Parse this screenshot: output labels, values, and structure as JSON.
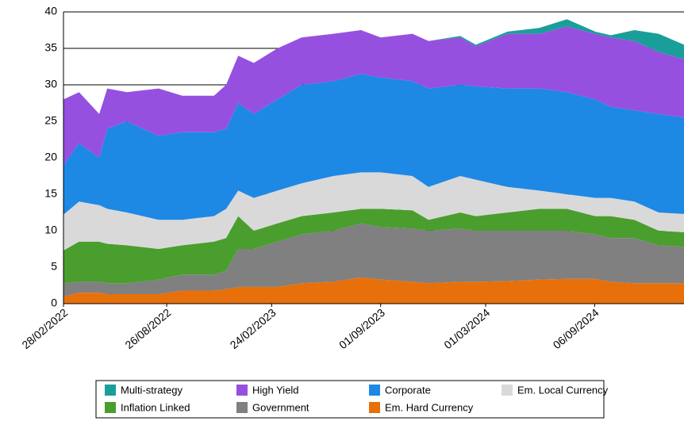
{
  "chart_data": {
    "type": "stacked-area",
    "x": [
      "28/02/2022",
      "27/03/2022",
      "01/05/2022",
      "15/05/2022",
      "18/06/2022",
      "12/08/2022",
      "22/09/2022",
      "16/11/2022",
      "07/12/2022",
      "28/12/2022",
      "24/01/2023",
      "06/03/2023",
      "17/04/2023",
      "11/06/2023",
      "29/07/2023",
      "01/09/2023",
      "26/10/2023",
      "23/11/2023",
      "17/01/2024",
      "13/02/2024",
      "08/04/2024",
      "02/06/2024",
      "20/07/2024",
      "07/09/2024",
      "04/10/2024",
      "14/11/2024",
      "26/12/2024",
      "08/02/2025"
    ],
    "xlim": [
      "28/02/2022",
      "08/02/2025"
    ],
    "xticks": [
      "28/02/2022",
      "26/08/2022",
      "24/02/2023",
      "01/09/2023",
      "01/03/2024",
      "06/09/2024"
    ],
    "ylim": [
      0,
      40
    ],
    "yticks": [
      0,
      5,
      10,
      15,
      20,
      25,
      30,
      35,
      40
    ],
    "grid": true,
    "series": [
      {
        "name": "Multi-strategy",
        "color": "#1a9e9a",
        "values": [
          0,
          0,
          0,
          0,
          0,
          0,
          0,
          0,
          0,
          0,
          0,
          0,
          0,
          0,
          0,
          0,
          0,
          0,
          0.2,
          0.2,
          0.3,
          0.8,
          1,
          0.3,
          0.3,
          1.5,
          2.5,
          2
        ]
      },
      {
        "name": "High Yield",
        "color": "#9650e0",
        "values": [
          9,
          7,
          6,
          5.5,
          4,
          6.5,
          5,
          5,
          6,
          6.5,
          7,
          7,
          6.5,
          6.5,
          6,
          5.5,
          6.5,
          6.5,
          6.5,
          5.5,
          7.5,
          7.5,
          9,
          9,
          9.5,
          9.5,
          8.5,
          8
        ]
      },
      {
        "name": "Corporate",
        "color": "#1e88e5",
        "values": [
          6.8,
          8,
          6.5,
          11,
          12.5,
          11.5,
          12,
          11.5,
          11,
          12,
          11.5,
          12.5,
          13.5,
          13,
          13.5,
          13,
          13,
          13.5,
          12.5,
          12.8,
          13.5,
          14,
          14,
          13.5,
          12.5,
          12.5,
          13.5,
          13.2
        ]
      },
      {
        "name": "Em. Local Currency",
        "color": "#d9d9d9",
        "values": [
          4.9,
          5.5,
          5,
          4.8,
          4.5,
          4,
          3.5,
          3.5,
          4,
          3.5,
          4.5,
          4.5,
          4.5,
          5,
          5,
          5,
          4.7,
          4.5,
          5,
          5,
          3.5,
          2.5,
          2,
          2.5,
          2.5,
          2.5,
          2.5,
          2.5
        ]
      },
      {
        "name": "Inflation Linked",
        "color": "#4a9e2e",
        "values": [
          4.5,
          5.5,
          5.5,
          5.4,
          5.2,
          4.2,
          4,
          4.5,
          4.5,
          4.5,
          2.5,
          2.5,
          2.5,
          2.5,
          2,
          2.5,
          2.5,
          1.5,
          2.2,
          2,
          2.5,
          3,
          3,
          2.5,
          3,
          2.5,
          2,
          2
        ]
      },
      {
        "name": "Government",
        "color": "#808080",
        "values": [
          1.8,
          1.5,
          1.5,
          1.5,
          1.5,
          2,
          2.2,
          2.2,
          2.5,
          5.2,
          5.2,
          6.2,
          6.7,
          7,
          7.4,
          7.2,
          7.3,
          7.2,
          7.3,
          7,
          6.9,
          6.7,
          6.6,
          6.1,
          6,
          6.2,
          5.2,
          5
        ]
      },
      {
        "name": "Em. Hard Currency",
        "color": "#e8700a",
        "values": [
          1,
          1.5,
          1.5,
          1.3,
          1.3,
          1.3,
          1.8,
          1.8,
          2,
          2.3,
          2.3,
          2.3,
          2.8,
          3,
          3.6,
          3.3,
          3,
          2.8,
          3,
          3,
          3.1,
          3.3,
          3.4,
          3.4,
          3,
          2.8,
          2.8,
          2.8
        ]
      }
    ]
  }
}
